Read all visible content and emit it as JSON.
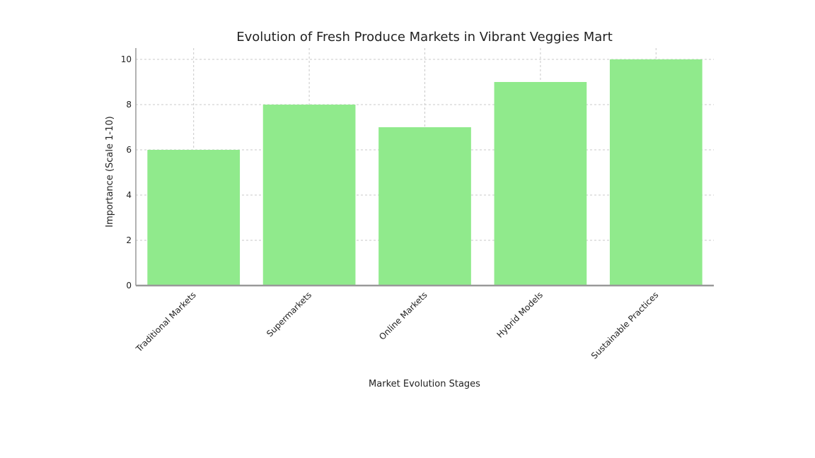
{
  "chart_data": {
    "type": "bar",
    "title": "Evolution of Fresh Produce Markets in Vibrant Veggies Mart",
    "xlabel": "Market Evolution Stages",
    "ylabel": "Importance (Scale 1-10)",
    "categories": [
      "Traditional Markets",
      "Supermarkets",
      "Online Markets",
      "Hybrid Models",
      "Sustainable Practices"
    ],
    "values": [
      6,
      8,
      7,
      9,
      10
    ],
    "ylim": [
      0,
      10
    ],
    "yticks": [
      0,
      2,
      4,
      6,
      8,
      10
    ],
    "grid": true,
    "bar_color": "#90ea8c",
    "axis_color": "#999999"
  }
}
